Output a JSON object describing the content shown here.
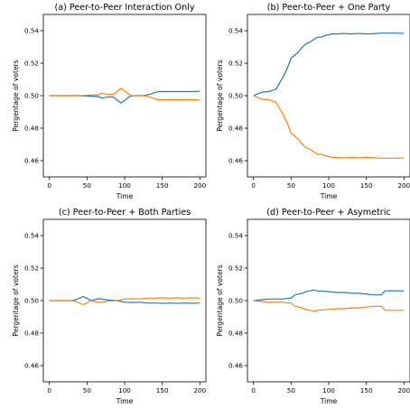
{
  "figure": {
    "colors": {
      "series_a": "#1f77b4",
      "series_b": "#ff7f0e"
    }
  },
  "chart_data": [
    {
      "type": "line",
      "title": "(a) Peer-to-Peer Interaction Only",
      "xlabel": "Time",
      "ylabel": "Pergentage of voters",
      "xlim": [
        -8,
        208
      ],
      "ylim": [
        0.45,
        0.55
      ],
      "xticks": [
        0,
        50,
        100,
        150,
        200
      ],
      "xticklabels": [
        "0",
        "50",
        "100",
        "150",
        "200"
      ],
      "yticks": [
        0.46,
        0.48,
        0.5,
        0.52,
        0.54
      ],
      "yticklabels": [
        "0.46",
        "0.48",
        "0.50",
        "0.52",
        "0.54"
      ],
      "grid": false,
      "series": [
        {
          "color": "#1f77b4",
          "x": [
            0,
            10,
            20,
            30,
            40,
            50,
            60,
            65,
            70,
            75,
            80,
            85,
            90,
            95,
            100,
            105,
            110,
            115,
            120,
            125,
            130,
            135,
            140,
            145,
            150,
            160,
            170,
            180,
            190,
            200
          ],
          "y": [
            0.5,
            0.5,
            0.5,
            0.5,
            0.5,
            0.4998,
            0.4995,
            0.4995,
            0.4985,
            0.499,
            0.4992,
            0.4992,
            0.4975,
            0.4955,
            0.497,
            0.499,
            0.5,
            0.5,
            0.5,
            0.5,
            0.5005,
            0.501,
            0.502,
            0.5025,
            0.5025,
            0.5025,
            0.5025,
            0.5025,
            0.5025,
            0.5027
          ]
        },
        {
          "color": "#ff7f0e",
          "x": [
            0,
            10,
            20,
            30,
            40,
            50,
            60,
            65,
            70,
            75,
            80,
            85,
            90,
            95,
            100,
            105,
            110,
            115,
            120,
            125,
            130,
            135,
            140,
            145,
            150,
            160,
            170,
            180,
            190,
            200
          ],
          "y": [
            0.5,
            0.5,
            0.5,
            0.5,
            0.5,
            0.5002,
            0.5005,
            0.5005,
            0.5015,
            0.501,
            0.5008,
            0.5008,
            0.5025,
            0.5045,
            0.503,
            0.501,
            0.5,
            0.5,
            0.5,
            0.5,
            0.4995,
            0.499,
            0.498,
            0.4975,
            0.4975,
            0.4975,
            0.4975,
            0.4975,
            0.4975,
            0.4973
          ]
        }
      ]
    },
    {
      "type": "line",
      "title": "(b) Peer-to-Peer + One Party",
      "xlabel": "Time",
      "ylabel": "Pergentage of voters",
      "xlim": [
        -8,
        208
      ],
      "ylim": [
        0.45,
        0.55
      ],
      "xticks": [
        0,
        50,
        100,
        150,
        200
      ],
      "xticklabels": [
        "0",
        "50",
        "100",
        "150",
        "200"
      ],
      "yticks": [
        0.46,
        0.48,
        0.5,
        0.52,
        0.54
      ],
      "yticklabels": [
        "0.46",
        "0.48",
        "0.50",
        "0.52",
        "0.54"
      ],
      "grid": false,
      "series": [
        {
          "color": "#1f77b4",
          "x": [
            0,
            5,
            10,
            20,
            30,
            35,
            40,
            45,
            50,
            55,
            60,
            65,
            70,
            75,
            80,
            85,
            90,
            95,
            100,
            105,
            110,
            120,
            130,
            140,
            150,
            160,
            170,
            180,
            190,
            200
          ],
          "y": [
            0.5,
            0.501,
            0.502,
            0.5025,
            0.504,
            0.508,
            0.512,
            0.517,
            0.523,
            0.525,
            0.527,
            0.53,
            0.532,
            0.533,
            0.5345,
            0.536,
            0.536,
            0.537,
            0.5375,
            0.538,
            0.538,
            0.5383,
            0.538,
            0.5383,
            0.538,
            0.5382,
            0.5385,
            0.5385,
            0.5385,
            0.5383
          ]
        },
        {
          "color": "#ff7f0e",
          "x": [
            0,
            5,
            10,
            20,
            30,
            35,
            40,
            45,
            50,
            55,
            60,
            65,
            70,
            75,
            80,
            85,
            90,
            95,
            100,
            105,
            110,
            120,
            130,
            140,
            150,
            160,
            170,
            180,
            190,
            200
          ],
          "y": [
            0.5,
            0.499,
            0.498,
            0.4975,
            0.496,
            0.492,
            0.488,
            0.483,
            0.477,
            0.475,
            0.473,
            0.47,
            0.468,
            0.467,
            0.4655,
            0.464,
            0.464,
            0.463,
            0.4625,
            0.462,
            0.462,
            0.4617,
            0.462,
            0.4617,
            0.462,
            0.4618,
            0.4615,
            0.4615,
            0.4615,
            0.4617
          ]
        }
      ]
    },
    {
      "type": "line",
      "title": "(c) Peer-to-Peer + Both Parties",
      "xlabel": "Time",
      "ylabel": "Pergentage of voters",
      "xlim": [
        -8,
        208
      ],
      "ylim": [
        0.45,
        0.55
      ],
      "xticks": [
        0,
        50,
        100,
        150,
        200
      ],
      "xticklabels": [
        "0",
        "50",
        "100",
        "150",
        "200"
      ],
      "yticks": [
        0.46,
        0.48,
        0.5,
        0.52,
        0.54
      ],
      "yticklabels": [
        "0.46",
        "0.48",
        "0.50",
        "0.52",
        "0.54"
      ],
      "grid": false,
      "series": [
        {
          "color": "#1f77b4",
          "x": [
            0,
            10,
            20,
            30,
            35,
            40,
            45,
            50,
            55,
            60,
            65,
            70,
            75,
            80,
            90,
            100,
            110,
            120,
            130,
            140,
            150,
            160,
            170,
            180,
            190,
            200
          ],
          "y": [
            0.5,
            0.5,
            0.5,
            0.5,
            0.5005,
            0.5015,
            0.5025,
            0.5015,
            0.5,
            0.5005,
            0.5012,
            0.501,
            0.5005,
            0.5003,
            0.5,
            0.499,
            0.4988,
            0.499,
            0.4985,
            0.4985,
            0.4983,
            0.4985,
            0.4983,
            0.4985,
            0.4983,
            0.4985
          ]
        },
        {
          "color": "#ff7f0e",
          "x": [
            0,
            10,
            20,
            30,
            35,
            40,
            45,
            50,
            55,
            60,
            65,
            70,
            75,
            80,
            90,
            100,
            110,
            120,
            130,
            140,
            150,
            160,
            170,
            180,
            190,
            200
          ],
          "y": [
            0.5,
            0.5,
            0.5,
            0.5,
            0.4995,
            0.4985,
            0.4975,
            0.4985,
            0.5,
            0.4995,
            0.4988,
            0.499,
            0.4995,
            0.4997,
            0.5,
            0.501,
            0.5012,
            0.501,
            0.5015,
            0.5015,
            0.5017,
            0.5015,
            0.5017,
            0.5015,
            0.5017,
            0.5015
          ]
        }
      ]
    },
    {
      "type": "line",
      "title": "(d) Peer-to-Peer + Asymetric",
      "xlabel": "Time",
      "ylabel": "Pergentage of voters",
      "xlim": [
        -8,
        208
      ],
      "ylim": [
        0.45,
        0.55
      ],
      "xticks": [
        0,
        50,
        100,
        150,
        200
      ],
      "xticklabels": [
        "0",
        "50",
        "100",
        "150",
        "200"
      ],
      "yticks": [
        0.46,
        0.48,
        0.5,
        0.52,
        0.54
      ],
      "yticklabels": [
        "0.46",
        "0.48",
        "0.50",
        "0.52",
        "0.54"
      ],
      "grid": false,
      "series": [
        {
          "color": "#1f77b4",
          "x": [
            0,
            10,
            20,
            30,
            40,
            45,
            50,
            55,
            60,
            65,
            70,
            75,
            80,
            85,
            90,
            100,
            110,
            120,
            130,
            140,
            150,
            160,
            165,
            170,
            175,
            180,
            190,
            200
          ],
          "y": [
            0.5,
            0.5005,
            0.501,
            0.501,
            0.501,
            0.5015,
            0.5015,
            0.5035,
            0.504,
            0.5045,
            0.5055,
            0.506,
            0.5065,
            0.506,
            0.5058,
            0.5055,
            0.505,
            0.505,
            0.5045,
            0.5045,
            0.504,
            0.5035,
            0.5035,
            0.5035,
            0.506,
            0.506,
            0.506,
            0.506
          ]
        },
        {
          "color": "#ff7f0e",
          "x": [
            0,
            10,
            20,
            30,
            40,
            45,
            50,
            55,
            60,
            65,
            70,
            75,
            80,
            85,
            90,
            100,
            110,
            120,
            130,
            140,
            150,
            160,
            165,
            170,
            175,
            180,
            190,
            200
          ],
          "y": [
            0.5,
            0.4995,
            0.499,
            0.499,
            0.499,
            0.4985,
            0.4985,
            0.4965,
            0.496,
            0.4955,
            0.4945,
            0.494,
            0.4935,
            0.494,
            0.4942,
            0.4945,
            0.495,
            0.495,
            0.4955,
            0.4955,
            0.496,
            0.4965,
            0.4965,
            0.4965,
            0.494,
            0.494,
            0.494,
            0.494
          ]
        }
      ]
    }
  ]
}
